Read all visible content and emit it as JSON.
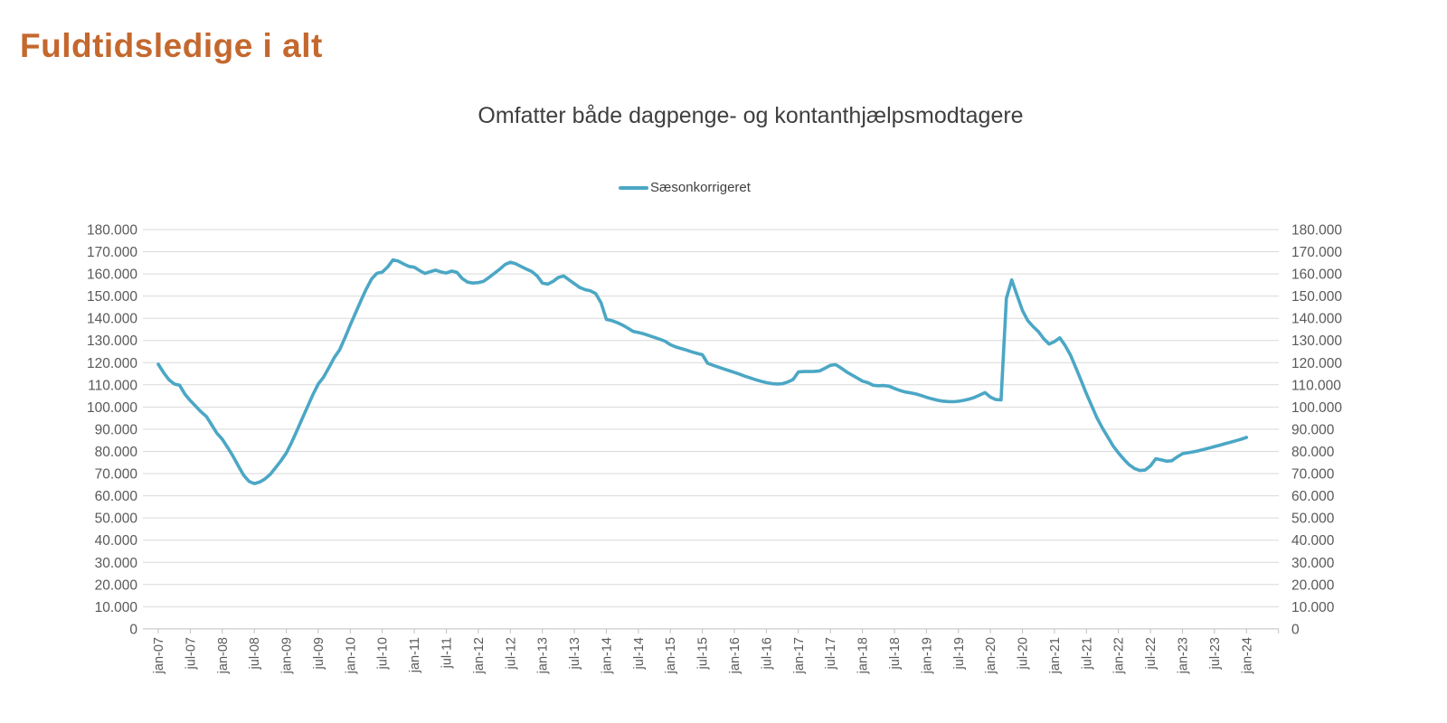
{
  "page_title": "Fuldtidsledige i alt",
  "colors": {
    "title": "#C4682E",
    "subtitle": "#3F3F3F",
    "series_line": "#4BA7C5",
    "axis_labels": "#595959",
    "gridline": "#D9D9D9",
    "axis_line": "#BFBFBF"
  },
  "chart": {
    "subtitle": "Omfatter både dagpenge- og kontanthjælpsmodtagere",
    "legend": {
      "label": "Sæsonkorrigeret",
      "color": "#4BA7C5"
    }
  },
  "chart_data": {
    "type": "line",
    "title": "Omfatter både dagpenge- og kontanthjælpsmodtagere",
    "legend_entries": [
      "Sæsonkorrigeret"
    ],
    "legend_position": "top-center",
    "grid": "horizontal-only",
    "dual_y_axis_labels": true,
    "ylim": [
      0,
      180000
    ],
    "y_tick_step": 10000,
    "y_tick_labels": [
      "0",
      "10.000",
      "20.000",
      "30.000",
      "40.000",
      "50.000",
      "60.000",
      "70.000",
      "80.000",
      "90.000",
      "100.000",
      "110.000",
      "120.000",
      "130.000",
      "140.000",
      "150.000",
      "160.000",
      "170.000",
      "180.000"
    ],
    "x_frequency": "monthly",
    "x_start": "jan-07",
    "x_end": "jan-24",
    "x_tick_labels": [
      "jan-07",
      "jul-07",
      "jan-08",
      "jul-08",
      "jan-09",
      "jul-09",
      "jan-10",
      "jul-10",
      "jan-11",
      "jul-11",
      "jan-12",
      "jul-12",
      "jan-13",
      "jul-13",
      "jan-14",
      "jul-14",
      "jan-15",
      "jul-15",
      "jan-16",
      "jul-16",
      "jan-17",
      "jul-17",
      "jan-18",
      "jul-18",
      "jan-19",
      "jul-19",
      "jan-20",
      "jul-20",
      "jan-21",
      "jul-21",
      "jan-22",
      "jul-22",
      "jan-23",
      "jul-23",
      "jan-24"
    ],
    "series": [
      {
        "name": "Sæsonkorrigeret",
        "color": "#4BA7C5",
        "first_month": "2007-01",
        "values": [
          119300,
          115500,
          112300,
          110400,
          109800,
          105800,
          102900,
          100400,
          97900,
          95800,
          92000,
          88200,
          85500,
          81800,
          77900,
          73500,
          69300,
          66500,
          65500,
          66200,
          67600,
          69700,
          72700,
          75800,
          79300,
          84100,
          89400,
          94900,
          100300,
          105700,
          110400,
          113500,
          117800,
          122300,
          125800,
          131200,
          137000,
          142500,
          148000,
          153200,
          157700,
          160300,
          160800,
          163100,
          166300,
          165800,
          164500,
          163400,
          163000,
          161500,
          160200,
          161000,
          161700,
          160900,
          160400,
          161300,
          160700,
          157900,
          156300,
          155900,
          156100,
          156700,
          158400,
          160300,
          162100,
          164200,
          165300,
          164600,
          163400,
          162200,
          161100,
          159200,
          155900,
          155400,
          156600,
          158400,
          159100,
          157300,
          155600,
          153900,
          152900,
          152400,
          151100,
          147000,
          139500,
          139000,
          138100,
          137000,
          135600,
          134100,
          133600,
          133000,
          132200,
          131400,
          130600,
          129700,
          128100,
          127100,
          126400,
          125700,
          124900,
          124200,
          123600,
          119700,
          118800,
          118000,
          117200,
          116400,
          115600,
          114800,
          113900,
          113100,
          112300,
          111600,
          111000,
          110600,
          110400,
          110500,
          111300,
          112400,
          115800,
          116000,
          116000,
          116100,
          116300,
          117500,
          118800,
          119100,
          117600,
          115900,
          114500,
          113100,
          111700,
          111000,
          109800,
          109600,
          109700,
          109400,
          108400,
          107500,
          106800,
          106400,
          105900,
          105200,
          104400,
          103700,
          103100,
          102700,
          102500,
          102400,
          102600,
          103000,
          103600,
          104300,
          105400,
          106500,
          104500,
          103400,
          103200,
          149000,
          157300,
          150400,
          143600,
          139000,
          136300,
          134000,
          130800,
          128400,
          129500,
          131200,
          127800,
          123500,
          117800,
          112000,
          106000,
          100500,
          95000,
          90500,
          86500,
          82500,
          79300,
          76500,
          74000,
          72300,
          71400,
          71600,
          73500,
          76700,
          76200,
          75600,
          75800,
          77500,
          79000,
          79400,
          79800,
          80300,
          80900,
          81500,
          82200,
          82800,
          83500,
          84100,
          84800,
          85500,
          86300
        ]
      }
    ]
  }
}
